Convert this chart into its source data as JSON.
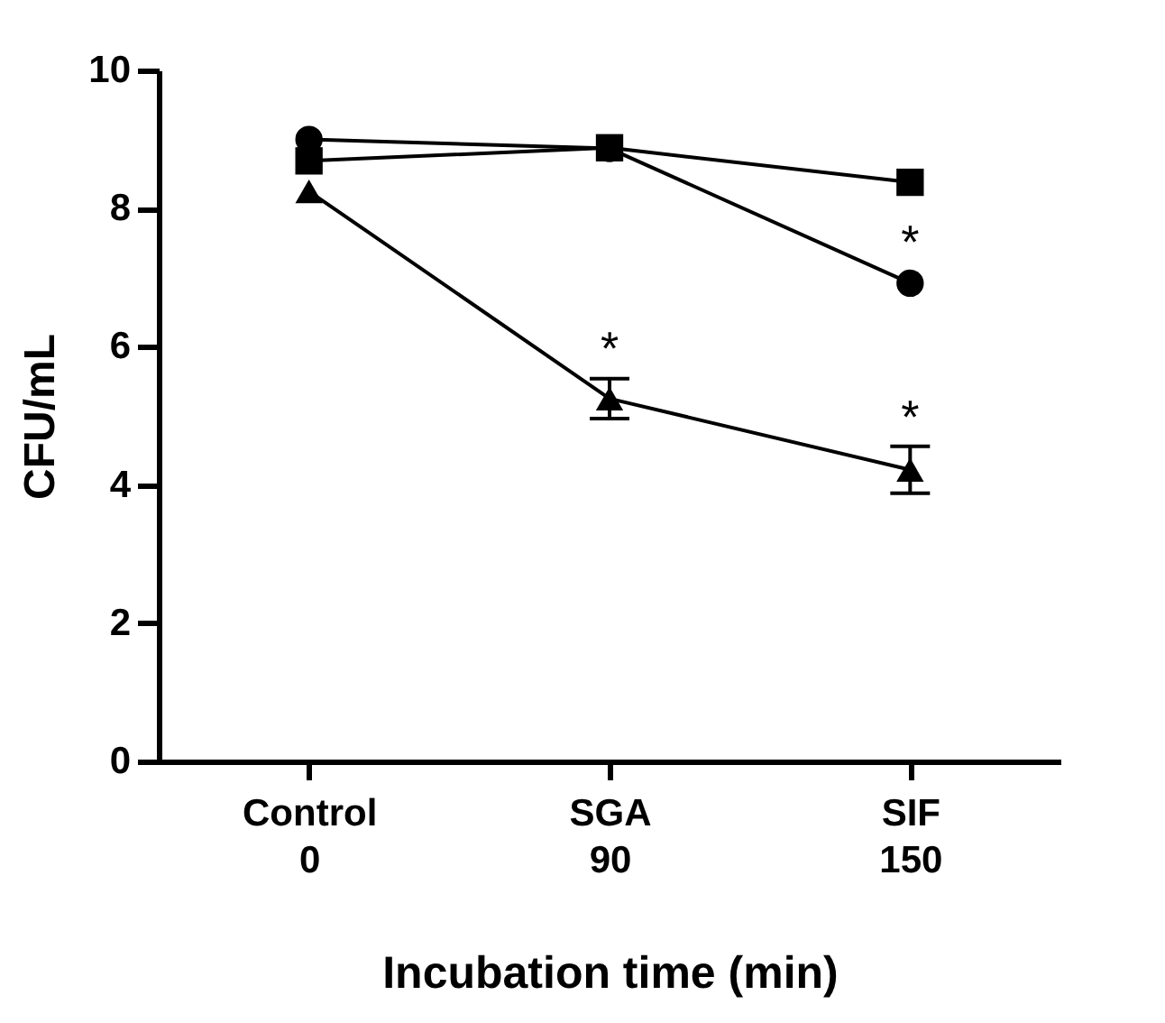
{
  "chart_data": {
    "type": "line",
    "xlabel": "Incubation time (min)",
    "ylabel": "CFU/mL",
    "categories": [
      "Control\n0",
      "SGA\n90",
      "SIF\n150"
    ],
    "ylim": [
      0,
      10
    ],
    "yticks": [
      0,
      2,
      4,
      6,
      8,
      10
    ],
    "grid": false,
    "series": [
      {
        "color": "#000000",
        "marker": "circle",
        "values": [
          9.0,
          8.87,
          6.92
        ]
      },
      {
        "color": "#000000",
        "marker": "square",
        "values": [
          8.69,
          8.88,
          8.38
        ]
      },
      {
        "color": "#000000",
        "marker": "triangle",
        "values": [
          8.25,
          5.25,
          4.22
        ],
        "errors": [
          null,
          0.29,
          0.34
        ]
      }
    ],
    "annotations": [
      {
        "text": "*",
        "x": "SGA\n90",
        "y": 5.56
      },
      {
        "text": "*",
        "x": "SIF\n150",
        "y": 7.1
      },
      {
        "text": "*",
        "x": "SIF\n150",
        "y": 4.57
      }
    ]
  }
}
